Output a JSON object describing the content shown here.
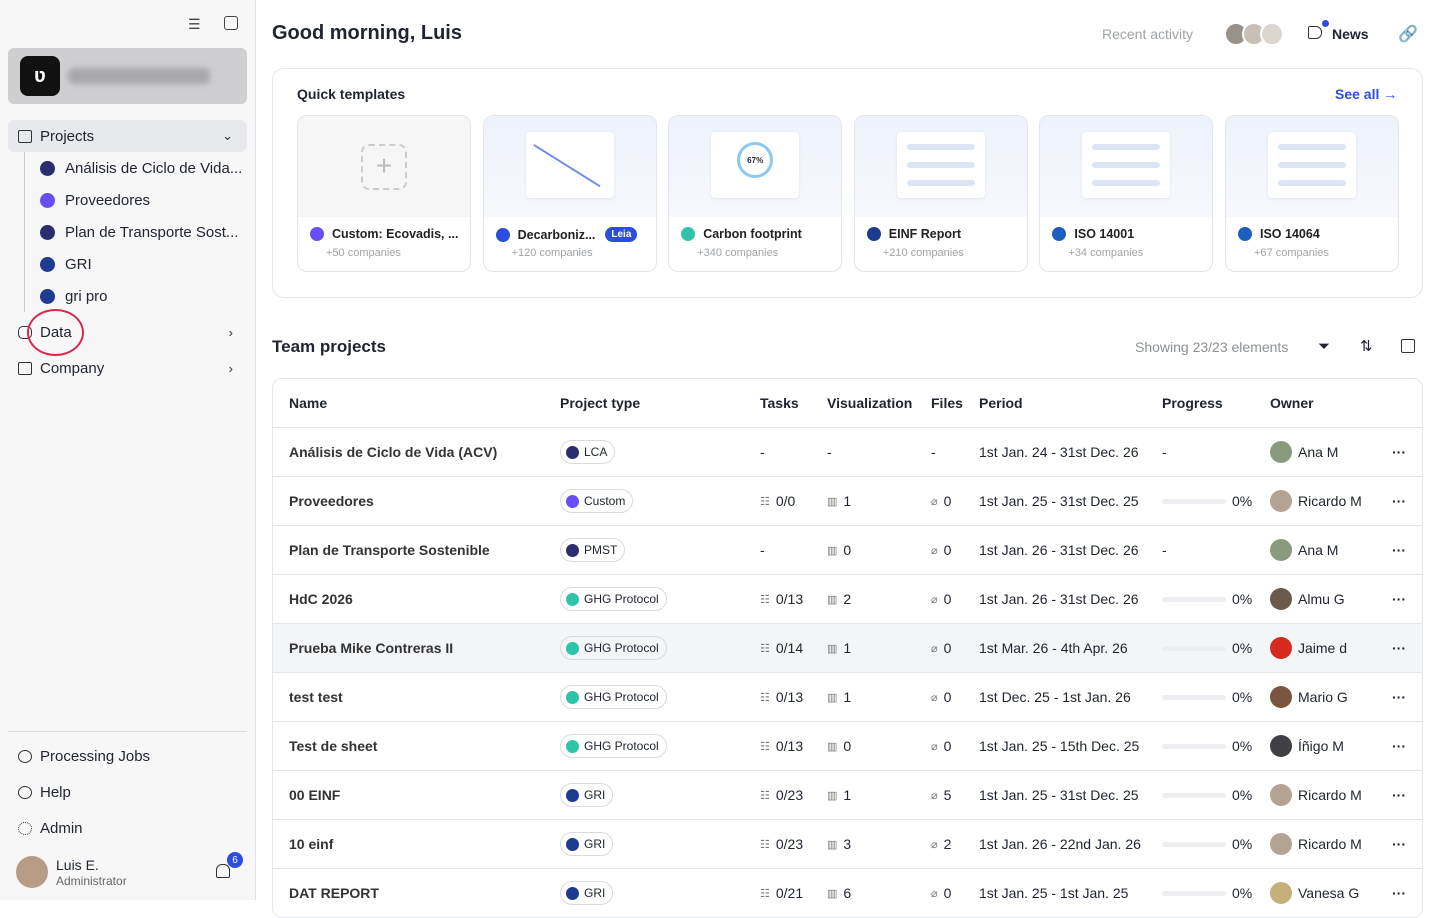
{
  "sidebar": {
    "projects_label": "Projects",
    "projects": [
      "Análisis de Ciclo de Vida...",
      "Proveedores",
      "Plan de Transporte Sost...",
      "GRI",
      "gri pro"
    ],
    "nav": [
      "Data",
      "Company"
    ],
    "bottom": [
      "Processing Jobs",
      "Help",
      "Admin"
    ],
    "user": {
      "name": "Luis E.",
      "role": "Administrator",
      "notifications": "6"
    }
  },
  "header": {
    "greeting": "Good morning, Luis",
    "recent_activity": "Recent activity",
    "news": "News"
  },
  "templates": {
    "title": "Quick templates",
    "see_all": "See all",
    "cards": [
      {
        "name": "Custom: Ecovadis, ...",
        "companies": "+50 companies"
      },
      {
        "name": "Decarboniz...",
        "companies": "+120 companies",
        "badge": "Leia"
      },
      {
        "name": "Carbon footprint",
        "companies": "+340 companies",
        "thumb_label": "67%"
      },
      {
        "name": "EINF Report",
        "companies": "+210 companies"
      },
      {
        "name": "ISO 14001",
        "companies": "+34 companies"
      },
      {
        "name": "ISO 14064",
        "companies": "+67 companies"
      }
    ]
  },
  "team": {
    "title": "Team projects",
    "showing": "Showing 23/23 elements",
    "columns": [
      "Name",
      "Project type",
      "Tasks",
      "Visualization",
      "Files",
      "Period",
      "Progress",
      "Owner"
    ],
    "rows": [
      [
        "Análisis de Ciclo de Vida (ACV)",
        "LCA",
        "-",
        "-",
        "-",
        "1st Jan. 24 - 31st Dec. 26",
        "-",
        "Ana M"
      ],
      [
        "Proveedores",
        "Custom",
        "0/0",
        "1",
        "0",
        "1st Jan. 25 - 31st Dec. 25",
        "0%",
        "Ricardo M"
      ],
      [
        "Plan de Transporte Sostenible",
        "PMST",
        "-",
        "0",
        "0",
        "1st Jan. 26 - 31st Dec. 26",
        "-",
        "Ana M"
      ],
      [
        "HdC 2026",
        "GHG Protocol",
        "0/13",
        "2",
        "0",
        "1st Jan. 26 - 31st Dec. 26",
        "0%",
        "Almu G"
      ],
      [
        "Prueba Mike Contreras II",
        "GHG Protocol",
        "0/14",
        "1",
        "0",
        "1st Mar. 26 - 4th Apr. 26",
        "0%",
        "Jaime d"
      ],
      [
        "test test",
        "GHG Protocol",
        "0/13",
        "1",
        "0",
        "1st Dec. 25 - 1st Jan. 26",
        "0%",
        "Mario G"
      ],
      [
        "Test de sheet",
        "GHG Protocol",
        "0/13",
        "0",
        "0",
        "1st Jan. 25 - 15th Dec. 25",
        "0%",
        "Íñigo M"
      ],
      [
        "00 EINF",
        "GRI",
        "0/23",
        "1",
        "5",
        "1st Jan. 25 - 31st Dec. 25",
        "0%",
        "Ricardo M"
      ],
      [
        "10 einf",
        "GRI",
        "0/23",
        "3",
        "2",
        "1st Jan. 26 - 22nd Jan. 26",
        "0%",
        "Ricardo M"
      ],
      [
        "DAT REPORT",
        "GRI",
        "0/21",
        "6",
        "0",
        "1st Jan. 25 - 1st Jan. 25",
        "0%",
        "Vanesa G"
      ]
    ]
  }
}
